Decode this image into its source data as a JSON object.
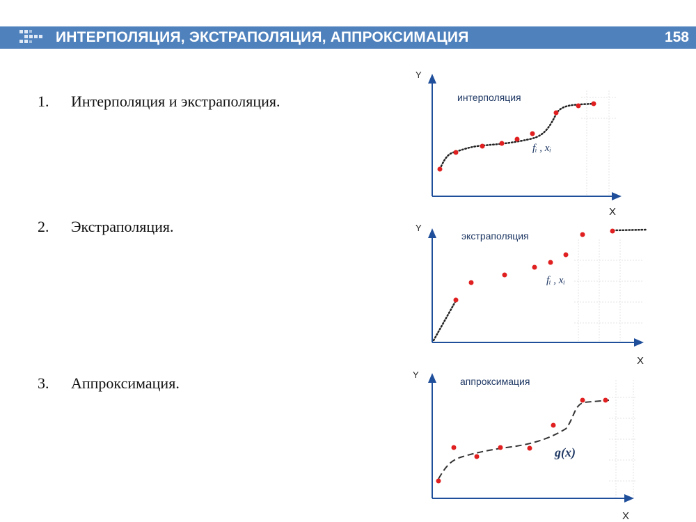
{
  "header": {
    "title": "ИНТЕРПОЛЯЦИЯ, ЭКСТРАПОЛЯЦИЯ, АППРОКСИМАЦИЯ",
    "slide_number": "158",
    "icon": "arrow-chevrons-icon",
    "background_color": "#4f81bd"
  },
  "items": [
    {
      "number": "1.",
      "text": "Интерполяция и экстраполяция."
    },
    {
      "number": "2.",
      "text": "Экстраполяция."
    },
    {
      "number": "3.",
      "text": "Аппроксимация."
    }
  ],
  "graphs": {
    "interpolation": {
      "title": "интерполяция",
      "y_label": "Y",
      "x_label": "X",
      "points_label": "fᵢ , xᵢ"
    },
    "extrapolation": {
      "title": "экстраполяция",
      "y_label": "Y",
      "x_label": "X",
      "points_label": "fᵢ , xᵢ"
    },
    "approximation": {
      "title": "аппроксимация",
      "y_label": "Y",
      "x_label": "X",
      "curve_label": "g(x)"
    }
  },
  "colors": {
    "points": "#e02020",
    "axes": "#1f4e9a",
    "curve": "#222222"
  }
}
